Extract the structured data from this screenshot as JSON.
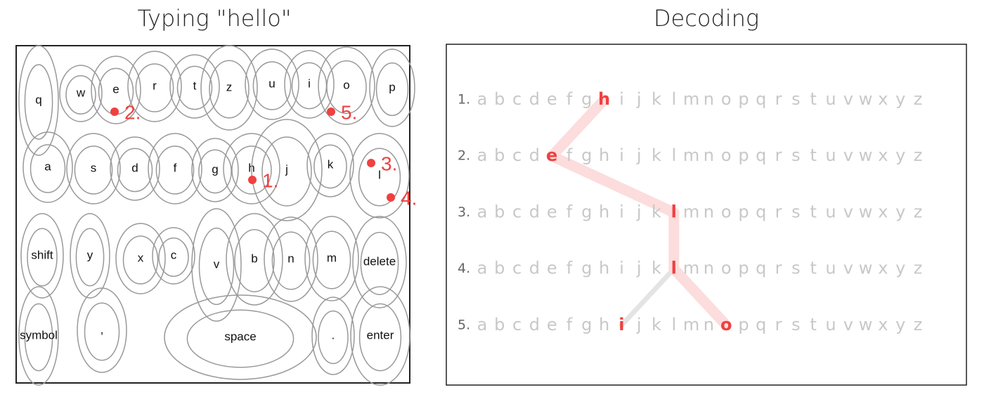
{
  "left": {
    "title": "Typing \"hello\"",
    "keys": [
      "q",
      "w",
      "e",
      "r",
      "t",
      "z",
      "u",
      "i",
      "o",
      "p",
      "a",
      "s",
      "d",
      "f",
      "g",
      "h",
      "j",
      "k",
      "l",
      "shift",
      "y",
      "x",
      "c",
      "v",
      "b",
      "n",
      "m",
      "delete",
      "symbol",
      ",",
      "space",
      ".",
      "enter"
    ],
    "touches": [
      "1.",
      "2.",
      "3.",
      "4.",
      "5."
    ]
  },
  "right": {
    "title": "Decoding",
    "alphabet": [
      "a",
      "b",
      "c",
      "d",
      "e",
      "f",
      "g",
      "h",
      "i",
      "j",
      "k",
      "l",
      "m",
      "n",
      "o",
      "p",
      "q",
      "r",
      "s",
      "t",
      "u",
      "v",
      "w",
      "x",
      "y",
      "z"
    ],
    "rows": [
      {
        "label": "1.",
        "selected": [
          "h"
        ]
      },
      {
        "label": "2.",
        "selected": [
          "e"
        ]
      },
      {
        "label": "3.",
        "selected": [
          "l"
        ]
      },
      {
        "label": "4.",
        "selected": [
          "l"
        ]
      },
      {
        "label": "5.",
        "selected": [
          "i",
          "o"
        ]
      }
    ]
  }
}
